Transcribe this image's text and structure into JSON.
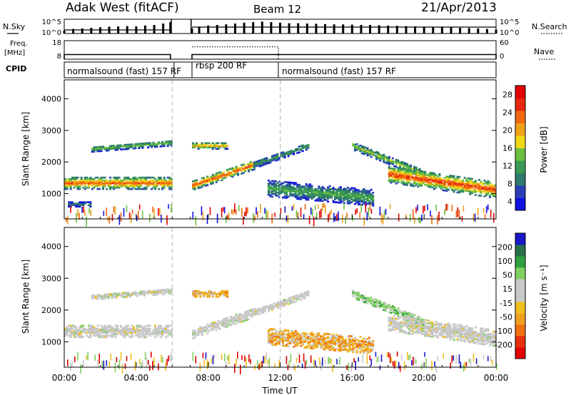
{
  "header": {
    "station": "Adak West (fitACF)",
    "beam": "Beam 12",
    "date": "21/Apr/2013"
  },
  "side_labels": {
    "nsky": "N.Sky",
    "freq_line1": "Freq.",
    "freq_line2": "[MHz]",
    "cpid": "CPID",
    "nsearch": "N.Search",
    "nave": "Nave"
  },
  "chart_data": [
    {
      "type": "line",
      "name": "noise-panel",
      "x": [
        0,
        0.5,
        1,
        1.5,
        2,
        2.5,
        3,
        3.5,
        4,
        4.5,
        5,
        5.5,
        5.9,
        7.1,
        7.5,
        8,
        8.5,
        9,
        9.5,
        10,
        10.5,
        11,
        11.5,
        12,
        12.5,
        13,
        13.5,
        14,
        14.5,
        15,
        15.5,
        16,
        16.5,
        17,
        17.5,
        18,
        18.5,
        19,
        19.5,
        20,
        20.5,
        21,
        21.5,
        22,
        22.5,
        23,
        23.5,
        24
      ],
      "series": [
        {
          "name": "N.Sky",
          "values": [
            1,
            1.6,
            1.8,
            2,
            2.2,
            2.4,
            2.5,
            2.6,
            2.5,
            2.8,
            3,
            3.5,
            4,
            1.8,
            2.4,
            2.8,
            3,
            3.2,
            3.5,
            3.8,
            4,
            4.2,
            4,
            3.8,
            3.6,
            3.6,
            3.5,
            3.4,
            3.3,
            3.2,
            3.2,
            3.1,
            3,
            3,
            2.9,
            2.8,
            2.7,
            2.6,
            2.5,
            2.4,
            2.3,
            2.2,
            2.1,
            2,
            1.9,
            1.8,
            1.6,
            1.4
          ]
        }
      ],
      "ytick_labels": [
        "10^5",
        "10^0"
      ],
      "right_tick_labels": [
        "10^5",
        "10^0"
      ]
    },
    {
      "type": "line",
      "name": "frequency-panel",
      "x": [
        0,
        5.9,
        7.1,
        11.9,
        12.0,
        24.0
      ],
      "series": [
        {
          "name": "Freq",
          "values": [
            10.5,
            10.5,
            10.5,
            10.5,
            10.5,
            10.5
          ]
        },
        {
          "name": "Nave",
          "values": [
            0,
            0,
            40,
            40,
            0,
            0
          ]
        }
      ],
      "ytick_labels": [
        "18",
        "8"
      ],
      "right_tick_labels": [
        "60",
        "0"
      ]
    },
    {
      "type": "table",
      "name": "cpid-bar",
      "segments": [
        {
          "start": 0.0,
          "end": 6.1,
          "label": "normalsound (fast) 157 RF"
        },
        {
          "start": 7.1,
          "end": 11.9,
          "label": "rbsp 200 RF"
        },
        {
          "start": 11.9,
          "end": 24.0,
          "label": "normalsound (fast) 157 RF"
        }
      ]
    },
    {
      "type": "heatmap",
      "name": "power",
      "ylabel": "Slant Range [km]",
      "ylim": [
        200,
        4600
      ],
      "yticks": [
        1000,
        2000,
        3000,
        4000
      ],
      "xlim": [
        0,
        24
      ],
      "colorbar": {
        "label": "Power [dB]",
        "ticks": [
          4,
          8,
          12,
          16,
          20,
          24,
          28
        ],
        "colors": [
          "#1010e0",
          "#2a40b8",
          "#2f7a6e",
          "#3a9a54",
          "#6cc040",
          "#f0d818",
          "#f0a018",
          "#f06810",
          "#e82810",
          "#e00000"
        ]
      },
      "echo_bands": [
        {
          "from": 0.0,
          "to": 5.9,
          "r0": 1320,
          "r1": 1320,
          "width": 380,
          "level": 25
        },
        {
          "from": 7.1,
          "to": 10.5,
          "r0": 1250,
          "r1": 1900,
          "width": 300,
          "level": 26
        },
        {
          "from": 10.5,
          "to": 13.5,
          "r0": 1900,
          "r1": 2500,
          "width": 220,
          "level": 12
        },
        {
          "from": 11.3,
          "to": 17.2,
          "r0": 1150,
          "r1": 850,
          "width": 500,
          "level": 13
        },
        {
          "from": 16.0,
          "to": 20.0,
          "r0": 2500,
          "r1": 1600,
          "width": 260,
          "level": 16
        },
        {
          "from": 18.0,
          "to": 24.0,
          "r0": 1600,
          "r1": 1100,
          "width": 520,
          "level": 27
        },
        {
          "from": 1.5,
          "to": 6.0,
          "r0": 2400,
          "r1": 2600,
          "width": 180,
          "level": 14
        },
        {
          "from": 7.1,
          "to": 9.0,
          "r0": 2500,
          "r1": 2500,
          "width": 200,
          "level": 22
        },
        {
          "from": 0.2,
          "to": 1.5,
          "r0": 650,
          "r1": 650,
          "width": 150,
          "level": 9
        }
      ]
    },
    {
      "type": "heatmap",
      "name": "velocity",
      "ylabel": "Slant Range [km]",
      "ylim": [
        200,
        4600
      ],
      "yticks": [
        1000,
        2000,
        3000,
        4000
      ],
      "xlim": [
        0,
        24
      ],
      "xlabel": "Time UT",
      "xtick_labels": [
        "00:00",
        "04:00",
        "08:00",
        "12:00",
        "16:00",
        "20:00",
        "00:00"
      ],
      "xtick_values": [
        0,
        4,
        8,
        12,
        16,
        20,
        24
      ],
      "colorbar": {
        "label": "Velocity [m s⁻¹]",
        "ticks": [
          "200",
          "100",
          "50",
          "15",
          "-15",
          "-50",
          "-100",
          "-200"
        ],
        "colors": [
          "#1818c8",
          "#287048",
          "#30a040",
          "#80d060",
          "#c8c8c8",
          "#c8c8c8",
          "#f0c020",
          "#f0a020",
          "#f07010",
          "#e83010",
          "#e00000"
        ]
      },
      "echo_bands": [
        {
          "from": 0.0,
          "to": 5.9,
          "r0": 1320,
          "r1": 1320,
          "width": 380,
          "tone": "grey"
        },
        {
          "from": 7.1,
          "to": 10.5,
          "r0": 1250,
          "r1": 1900,
          "width": 300,
          "tone": "grey"
        },
        {
          "from": 10.5,
          "to": 13.5,
          "r0": 1900,
          "r1": 2500,
          "width": 220,
          "tone": "grey"
        },
        {
          "from": 11.3,
          "to": 17.2,
          "r0": 1150,
          "r1": 850,
          "width": 500,
          "tone": "orange"
        },
        {
          "from": 16.0,
          "to": 20.0,
          "r0": 2500,
          "r1": 1600,
          "width": 260,
          "tone": "green"
        },
        {
          "from": 18.0,
          "to": 24.0,
          "r0": 1600,
          "r1": 1100,
          "width": 520,
          "tone": "grey"
        },
        {
          "from": 1.5,
          "to": 6.0,
          "r0": 2400,
          "r1": 2600,
          "width": 180,
          "tone": "grey"
        },
        {
          "from": 7.1,
          "to": 9.0,
          "r0": 2500,
          "r1": 2500,
          "width": 200,
          "tone": "orange"
        }
      ]
    }
  ]
}
